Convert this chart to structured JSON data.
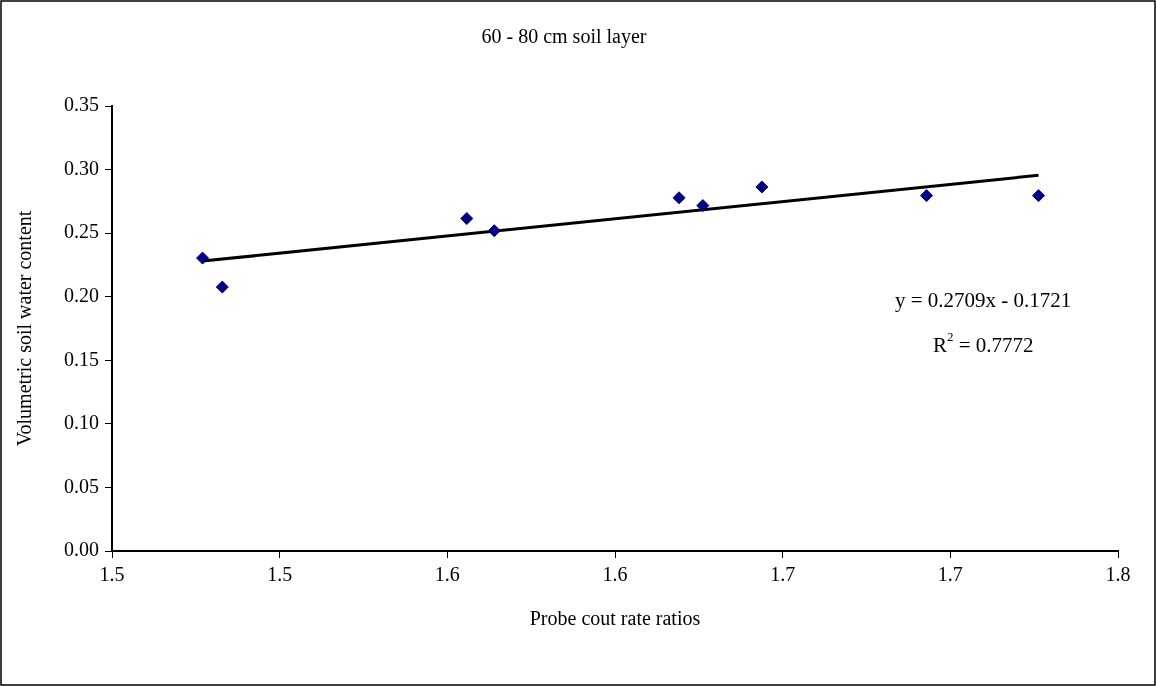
{
  "chart_data": {
    "type": "scatter",
    "title": "60 - 80 cm soil layer",
    "xlabel": "Probe cout rate ratios",
    "ylabel": "Volumetric soil water content",
    "series": [
      {
        "marker": "diamond",
        "color": "#000080",
        "x": [
          1.477,
          1.4829,
          1.5558,
          1.564,
          1.6191,
          1.6262,
          1.6438,
          1.6929,
          1.7263
        ],
        "values": [
          0.2304,
          0.2076,
          0.2615,
          0.2519,
          0.2778,
          0.2717,
          0.2863,
          0.2795,
          0.2795
        ]
      },
      {
        "type": "line",
        "marker": "none",
        "color": "#000000",
        "x": [
          1.477,
          1.7263
        ],
        "values": [
          0.228,
          0.2955
        ]
      }
    ],
    "xlim": [
      1.45,
      1.75
    ],
    "xticks": [
      {
        "value": 1.45,
        "label": "1.5"
      },
      {
        "value": 1.5,
        "label": "1.5"
      },
      {
        "value": 1.55,
        "label": "1.6"
      },
      {
        "value": 1.6,
        "label": "1.6"
      },
      {
        "value": 1.65,
        "label": "1.7"
      },
      {
        "value": 1.7,
        "label": "1.7"
      },
      {
        "value": 1.75,
        "label": "1.8"
      }
    ],
    "ylim": [
      0,
      0.35
    ],
    "yticks": [
      {
        "value": 0,
        "label": "0.00"
      },
      {
        "value": 0.05,
        "label": "0.05"
      },
      {
        "value": 0.1,
        "label": "0.10"
      },
      {
        "value": 0.15,
        "label": "0.15"
      },
      {
        "value": 0.2,
        "label": "0.20"
      },
      {
        "value": 0.25,
        "label": "0.25"
      },
      {
        "value": 0.3,
        "label": "0.30"
      },
      {
        "value": 0.35,
        "label": "0.35"
      }
    ],
    "annotations": [
      "y = 0.2709x - 0.1721",
      "R$^{2}$ = 0.7772"
    ],
    "grid": false,
    "legend": false
  }
}
